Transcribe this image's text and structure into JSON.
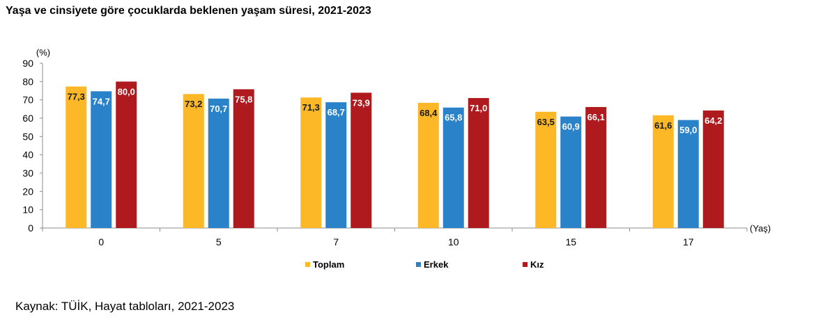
{
  "title": "Yaşa ve cinsiyete göre çocuklarda beklenen yaşam süresi, 2021-2023",
  "source": "Kaynak: TÜİK, Hayat tabloları, 2021-2023",
  "chart_data": {
    "type": "bar",
    "title": "Yaşa ve cinsiyete göre çocuklarda beklenen yaşam süresi, 2021-2023",
    "ylabel": "(%)",
    "xlabel": "(Yaş)",
    "ylim": [
      0,
      90
    ],
    "yticks": [
      0,
      10,
      20,
      30,
      40,
      50,
      60,
      70,
      80,
      90
    ],
    "grid": false,
    "legend": "bottom",
    "categories": [
      "0",
      "5",
      "7",
      "10",
      "15",
      "17"
    ],
    "series": [
      {
        "name": "Toplam",
        "color": "#FDB827",
        "values": [
          77.3,
          73.2,
          71.3,
          68.4,
          63.5,
          61.6
        ],
        "labels": [
          "77,3",
          "73,2",
          "71,3",
          "68,4",
          "63,5",
          "61,6"
        ],
        "label_color": "#1a1a1a"
      },
      {
        "name": "Erkek",
        "color": "#2A82C9",
        "values": [
          74.7,
          70.7,
          68.7,
          65.8,
          60.9,
          59.0
        ],
        "labels": [
          "74,7",
          "70,7",
          "68,7",
          "65,8",
          "60,9",
          "59,0"
        ],
        "label_color": "#ffffff"
      },
      {
        "name": "Kız",
        "color": "#AE1A1E",
        "values": [
          80.0,
          75.8,
          73.9,
          71.0,
          66.1,
          64.2
        ],
        "labels": [
          "80,0",
          "75,8",
          "73,9",
          "71,0",
          "66,1",
          "64,2"
        ],
        "label_color": "#ffffff"
      }
    ]
  }
}
